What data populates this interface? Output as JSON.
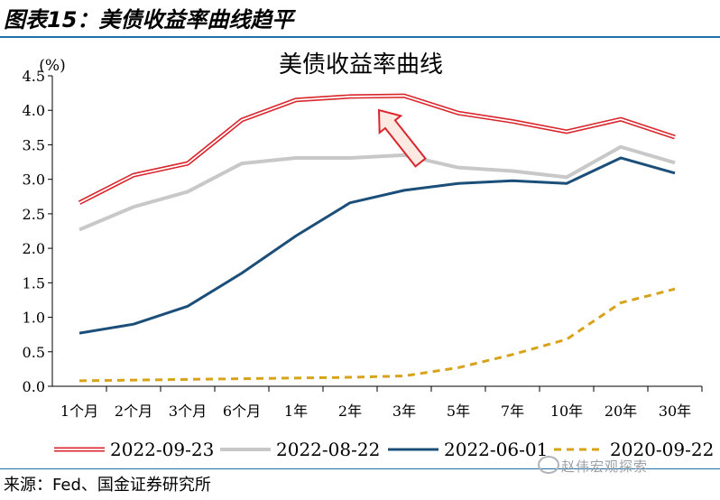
{
  "figure": {
    "label": "图表15：美债收益率曲线趋平",
    "source": "来源：Fed、国金证券研究所",
    "watermark": "赵伟宏观探索"
  },
  "chart_data": {
    "type": "line",
    "title": "美债收益率曲线",
    "ylabel": "(%)",
    "xlabel": "",
    "ylim": [
      0,
      4.5
    ],
    "yticks": [
      "0.0",
      "0.5",
      "1.0",
      "1.5",
      "2.0",
      "2.5",
      "3.0",
      "3.5",
      "4.0",
      "4.5"
    ],
    "categories": [
      "1个月",
      "2个月",
      "3个月",
      "6个月",
      "1年",
      "2年",
      "3年",
      "5年",
      "7年",
      "10年",
      "20年",
      "30年"
    ],
    "grid": false,
    "legend": "bottom",
    "annotation": "arrow-up",
    "series": [
      {
        "name": "2022-09-23",
        "color": "#d9262c",
        "style": "double",
        "values": [
          2.66,
          3.06,
          3.23,
          3.86,
          4.15,
          4.2,
          4.21,
          3.96,
          3.84,
          3.69,
          3.87,
          3.61
        ]
      },
      {
        "name": "2022-08-22",
        "color": "#c8c8c8",
        "style": "solid",
        "values": [
          2.27,
          2.6,
          2.82,
          3.23,
          3.31,
          3.31,
          3.35,
          3.17,
          3.12,
          3.03,
          3.47,
          3.24
        ]
      },
      {
        "name": "2022-06-01",
        "color": "#1b4f7a",
        "style": "solid",
        "values": [
          0.77,
          0.9,
          1.16,
          1.64,
          2.18,
          2.66,
          2.84,
          2.94,
          2.98,
          2.94,
          3.31,
          3.09
        ]
      },
      {
        "name": "2020-09-22",
        "color": "#d9a21b",
        "style": "dashed",
        "values": [
          0.08,
          0.09,
          0.1,
          0.11,
          0.12,
          0.13,
          0.15,
          0.27,
          0.46,
          0.68,
          1.21,
          1.41
        ]
      }
    ]
  }
}
